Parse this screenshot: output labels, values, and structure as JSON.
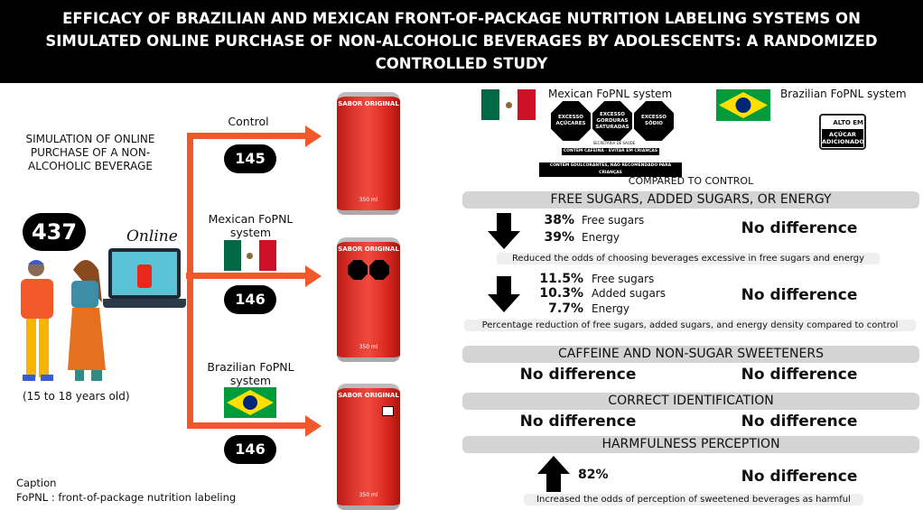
{
  "title": "EFFICACY OF BRAZILIAN AND MEXICAN FRONT-OF-PACKAGE NUTRITION LABELING SYSTEMS ON SIMULATED ONLINE PURCHASE OF NON-ALCOHOLIC BEVERAGES BY ADOLESCENTS: A RANDOMIZED CONTROLLED STUDY",
  "left": {
    "simulation": "SIMULATION OF ONLINE PURCHASE OF A NON-ALCOHOLIC BEVERAGE",
    "participants": "437",
    "age": "(15 to 18 years old)",
    "online": "Online",
    "groups": [
      {
        "label": "Control",
        "n": "145"
      },
      {
        "label": "Mexican FoPNL system",
        "n": "146"
      },
      {
        "label": "Brazilian FoPNL system",
        "n": "146"
      }
    ],
    "can_brand": "SABOR ORIGINAL",
    "can_volume": "350 ml",
    "caption_title": "Caption",
    "caption_text": "FoPNL : front-of-package nutrition labeling"
  },
  "colors": {
    "arrow": "#f1592a",
    "can": "#e23a30",
    "header_bar": "#d4d4d4"
  },
  "right": {
    "mexican_label": "Mexican FoPNL system",
    "brazilian_label": "Brazilian FoPNL system",
    "mx_octagons": [
      "EXCESSO AÇÚCARES",
      "EXCESSO GORDURAS SATURADAS",
      "EXCESSO SÓDIO"
    ],
    "mx_secretaria": "SECRETARIA DE SAÚDE",
    "mx_caffeine": "CONTÉM CAFEÍNA - EVITAR EM CRIANÇAS",
    "mx_sweeteners": "CONTÉM EDULCORANTES, NÃO RECOMENDADO PARA CRIANÇAS",
    "br_top": "ALTO EM",
    "br_bottom": "AÇÚCAR ADICIONADO",
    "compared": "COMPARED TO CONTROL",
    "sections": {
      "sugars": {
        "title": "FREE SUGARS, ADDED SUGARS, OR ENERGY",
        "row1": {
          "icon": "arrow-down",
          "items": [
            {
              "pct": "38%",
              "label": "Free sugars"
            },
            {
              "pct": "39%",
              "label": "Energy"
            }
          ],
          "brazil": "No difference",
          "note": "Reduced the odds of choosing beverages excessive in free sugars and energy"
        },
        "row2": {
          "icon": "arrow-down",
          "items": [
            {
              "pct": "11.5%",
              "label": "Free sugars"
            },
            {
              "pct": "10.3%",
              "label": "Added sugars"
            },
            {
              "pct": "7.7%",
              "label": "Energy"
            }
          ],
          "brazil": "No difference",
          "note": "Percentage reduction of free sugars, added sugars, and energy density compared to control"
        }
      },
      "caffeine": {
        "title": "CAFFEINE AND NON-SUGAR SWEETENERS",
        "mexico": "No difference",
        "brazil": "No difference"
      },
      "identification": {
        "title": "CORRECT IDENTIFICATION",
        "mexico": "No difference",
        "brazil": "No difference"
      },
      "harm": {
        "title": "HARMFULNESS PERCEPTION",
        "icon": "arrow-up",
        "pct": "82%",
        "brazil": "No difference",
        "note": "Increased the odds of perception of sweetened beverages as harmful"
      }
    }
  }
}
